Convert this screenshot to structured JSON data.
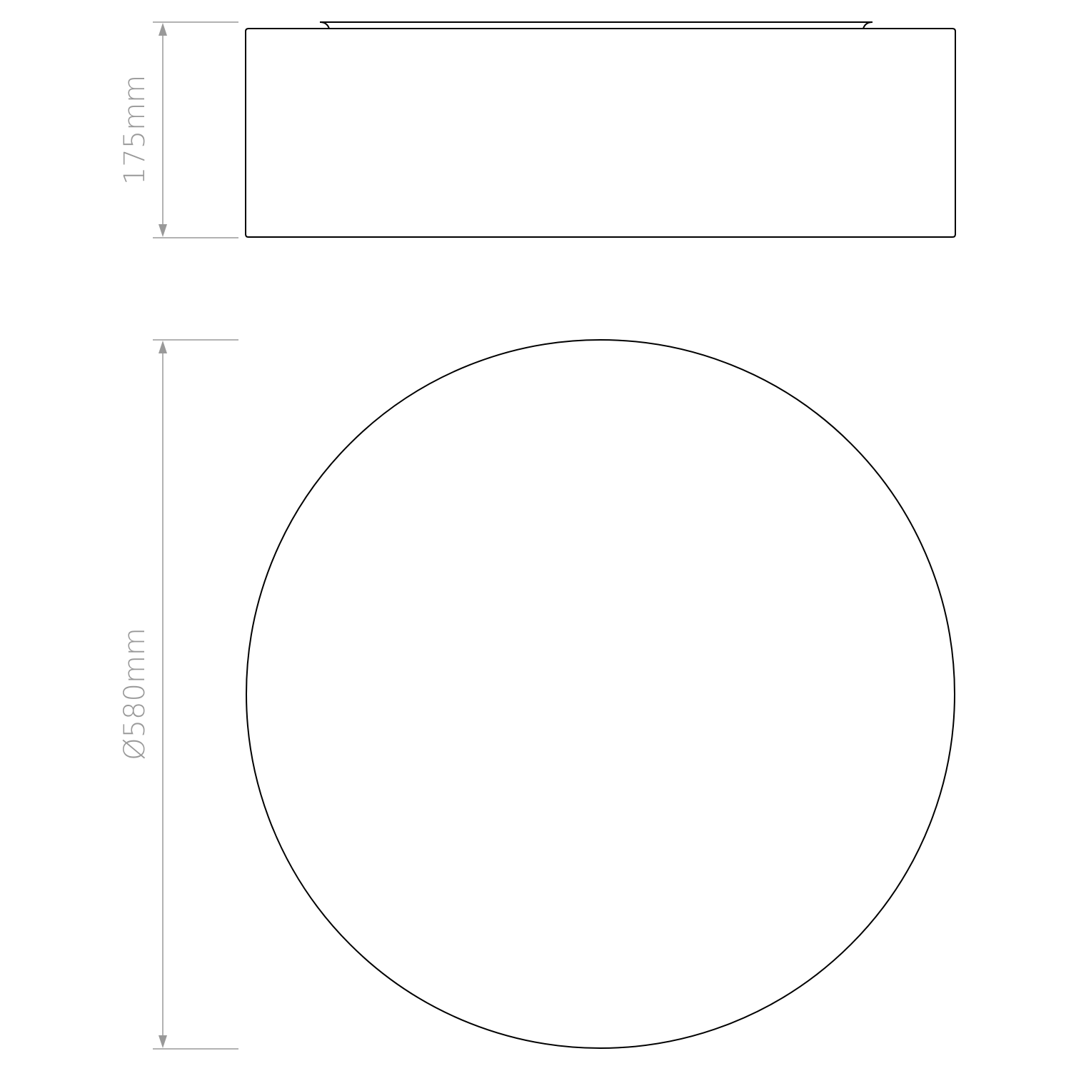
{
  "dimensions": {
    "height_label": "175mm",
    "diameter_label": "Ø580mm"
  },
  "colors": {
    "dimension_lines": "#999999",
    "outline": "#000000",
    "background": "#ffffff"
  }
}
